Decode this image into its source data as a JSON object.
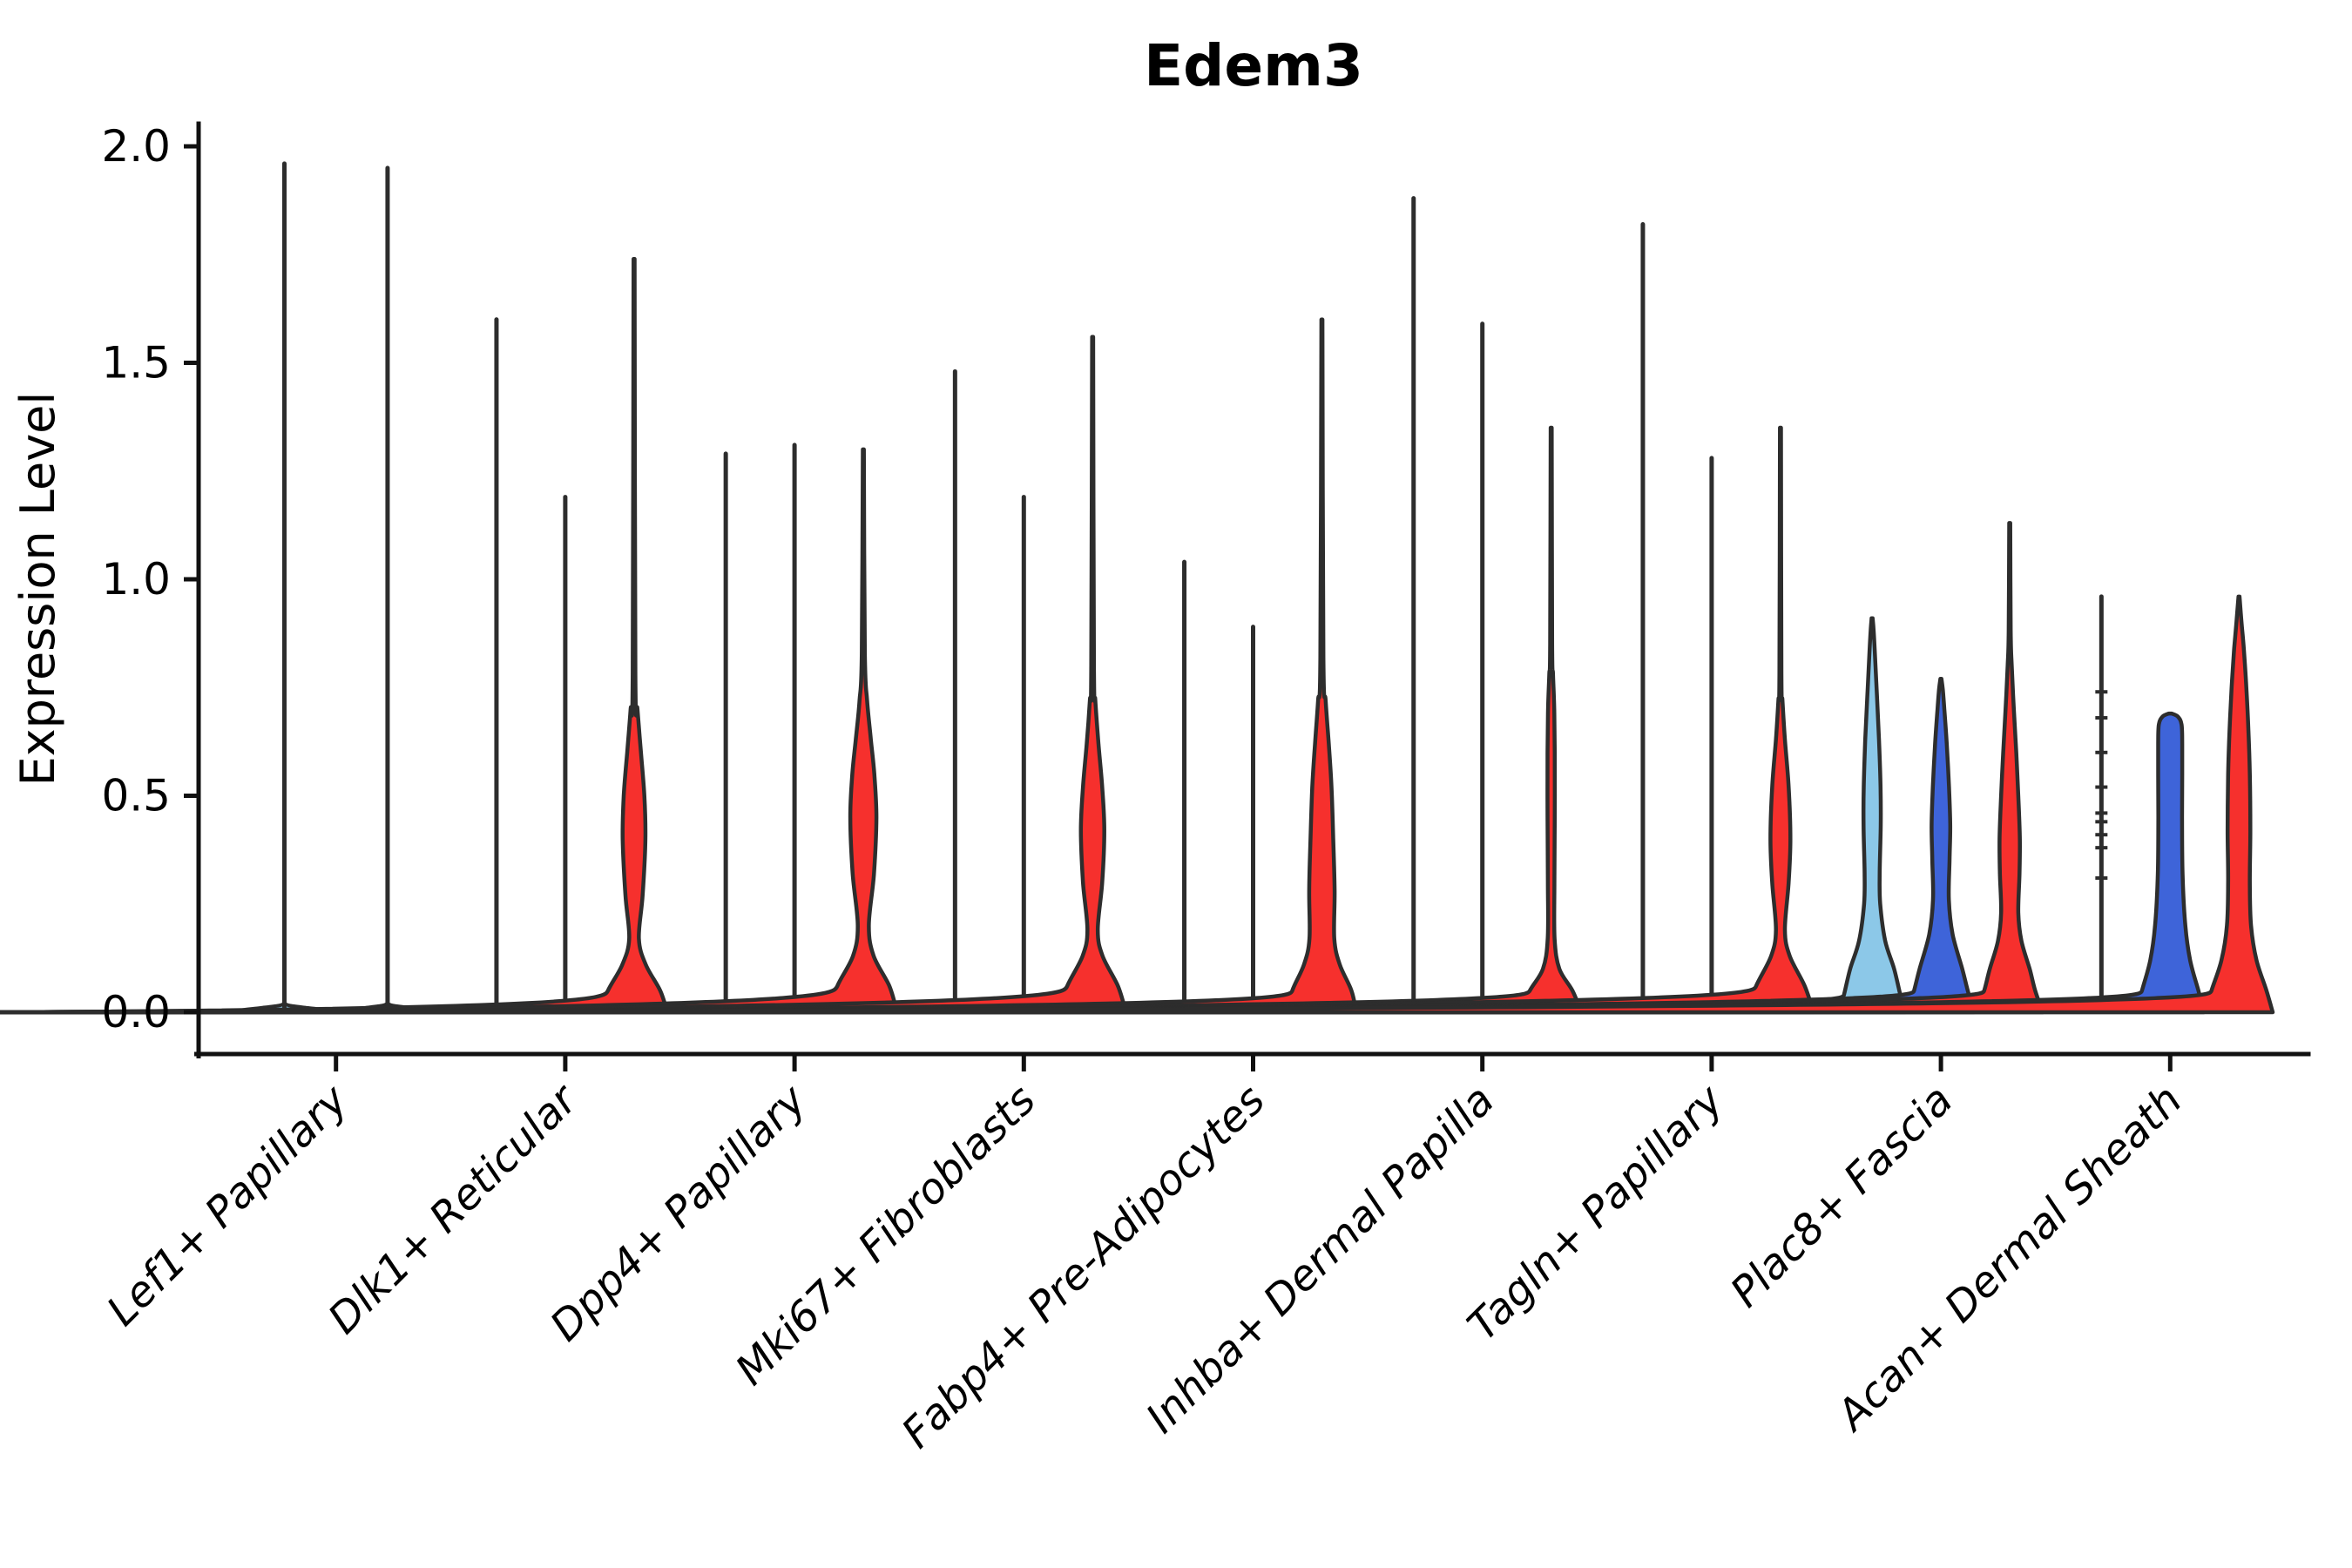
{
  "figure": {
    "background": "#FFFFFF"
  },
  "y_axis": {
    "label": "Expression Level",
    "tick_labels": [
      "0.0",
      "0.5",
      "1.0",
      "1.5",
      "2.0"
    ]
  },
  "chart_data": {
    "type": "violin",
    "title": "Edem3",
    "xlabel": "",
    "ylabel": "Expression Level",
    "ylim": [
      -0.1,
      2.05
    ],
    "yticks": [
      0,
      0.5,
      1,
      1.5,
      2
    ],
    "ytick_labels": [
      "0.0",
      "0.5",
      "1.0",
      "1.5",
      "2.0"
    ],
    "grid": false,
    "legend": "none",
    "outline_color": "#2D2D2D",
    "split_groups": [
      {
        "id": 1,
        "color": "#8CC8E8"
      },
      {
        "id": 2,
        "color": "#3E64D9"
      },
      {
        "id": 3,
        "color": "#F6302D"
      }
    ],
    "categories": [
      {
        "label": "Lef1+ Papillary",
        "violins": [
          {
            "group": 1,
            "max": 1.96,
            "shape": "line"
          },
          {
            "group": 2,
            "max": 1.95,
            "shape": "line"
          }
        ]
      },
      {
        "label": "Dlk1+ Reticular",
        "violins": [
          {
            "group": 1,
            "max": 1.6,
            "shape": "line"
          },
          {
            "group": 2,
            "max": 1.19,
            "shape": "line"
          },
          {
            "group": 3,
            "max": 1.74,
            "shape": "body",
            "profile": [
              [
                0,
                0.97
              ],
              [
                0.05,
                0.76
              ],
              [
                0.11,
                0.34
              ],
              [
                0.17,
                0.14
              ],
              [
                0.27,
                0.25
              ],
              [
                0.4,
                0.33
              ],
              [
                0.5,
                0.3
              ],
              [
                0.6,
                0.2
              ],
              [
                0.7,
                0.1
              ],
              [
                0.78,
                0.04
              ],
              [
                1.74,
                0.015
              ]
            ]
          }
        ]
      },
      {
        "label": "Dpp4+ Papillary",
        "violins": [
          {
            "group": 1,
            "max": 1.29,
            "shape": "line"
          },
          {
            "group": 2,
            "max": 1.31,
            "shape": "line"
          },
          {
            "group": 3,
            "max": 1.3,
            "shape": "body",
            "profile": [
              [
                0,
                0.98
              ],
              [
                0.06,
                0.76
              ],
              [
                0.13,
                0.3
              ],
              [
                0.2,
                0.16
              ],
              [
                0.32,
                0.31
              ],
              [
                0.45,
                0.38
              ],
              [
                0.55,
                0.32
              ],
              [
                0.63,
                0.22
              ],
              [
                0.72,
                0.11
              ],
              [
                0.83,
                0.045
              ],
              [
                1.3,
                0.015
              ]
            ]
          }
        ]
      },
      {
        "label": "Mki67+ Fibroblasts",
        "violins": [
          {
            "group": 1,
            "max": 1.48,
            "shape": "line"
          },
          {
            "group": 2,
            "max": 1.19,
            "shape": "line"
          },
          {
            "group": 3,
            "max": 1.56,
            "shape": "body",
            "profile": [
              [
                0,
                0.97
              ],
              [
                0.06,
                0.74
              ],
              [
                0.13,
                0.29
              ],
              [
                0.19,
                0.15
              ],
              [
                0.3,
                0.28
              ],
              [
                0.42,
                0.34
              ],
              [
                0.52,
                0.28
              ],
              [
                0.62,
                0.17
              ],
              [
                0.72,
                0.08
              ],
              [
                0.8,
                0.04
              ],
              [
                1.56,
                0.015
              ]
            ]
          }
        ]
      },
      {
        "label": "Fabp4+ Pre-Adipocytes",
        "violins": [
          {
            "group": 1,
            "max": 1.04,
            "shape": "line"
          },
          {
            "group": 2,
            "max": 0.89,
            "shape": "line"
          },
          {
            "group": 3,
            "max": 1.6,
            "shape": "body",
            "profile": [
              [
                0,
                1.0
              ],
              [
                0.05,
                0.86
              ],
              [
                0.11,
                0.52
              ],
              [
                0.17,
                0.36
              ],
              [
                0.28,
                0.37
              ],
              [
                0.4,
                0.33
              ],
              [
                0.52,
                0.28
              ],
              [
                0.62,
                0.2
              ],
              [
                0.72,
                0.11
              ],
              [
                0.82,
                0.045
              ],
              [
                1.6,
                0.015
              ]
            ]
          }
        ]
      },
      {
        "label": "Inhba+ Dermal Papilla",
        "violins": [
          {
            "group": 1,
            "max": 1.88,
            "shape": "line"
          },
          {
            "group": 2,
            "max": 1.59,
            "shape": "line"
          },
          {
            "group": 3,
            "max": 1.35,
            "shape": "body",
            "profile": [
              [
                0,
                0.88
              ],
              [
                0.05,
                0.62
              ],
              [
                0.1,
                0.24
              ],
              [
                0.17,
                0.1
              ],
              [
                0.3,
                0.095
              ],
              [
                0.45,
                0.105
              ],
              [
                0.6,
                0.105
              ],
              [
                0.7,
                0.09
              ],
              [
                0.78,
                0.055
              ],
              [
                0.85,
                0.03
              ],
              [
                1.35,
                0.015
              ]
            ]
          }
        ]
      },
      {
        "label": "Tagln+ Papillary",
        "violins": [
          {
            "group": 1,
            "max": 1.82,
            "shape": "line"
          },
          {
            "group": 2,
            "max": 1.28,
            "shape": "line"
          },
          {
            "group": 3,
            "max": 1.35,
            "shape": "body",
            "profile": [
              [
                0,
                0.96
              ],
              [
                0.06,
                0.71
              ],
              [
                0.13,
                0.27
              ],
              [
                0.19,
                0.13
              ],
              [
                0.3,
                0.24
              ],
              [
                0.4,
                0.29
              ],
              [
                0.52,
                0.24
              ],
              [
                0.63,
                0.13
              ],
              [
                0.72,
                0.06
              ],
              [
                0.78,
                0.03
              ],
              [
                1.35,
                0.015
              ]
            ]
          }
        ]
      },
      {
        "label": "Plac8+ Fascia",
        "violins": [
          {
            "group": 1,
            "max": 0.91,
            "shape": "body",
            "profile": [
              [
                0,
                0.96
              ],
              [
                0.04,
                0.82
              ],
              [
                0.1,
                0.64
              ],
              [
                0.165,
                0.38
              ],
              [
                0.25,
                0.235
              ],
              [
                0.32,
                0.22
              ],
              [
                0.43,
                0.25
              ],
              [
                0.52,
                0.245
              ],
              [
                0.63,
                0.2
              ],
              [
                0.73,
                0.14
              ],
              [
                0.82,
                0.085
              ],
              [
                0.88,
                0.045
              ],
              [
                0.91,
                0.015
              ]
            ]
          },
          {
            "group": 2,
            "max": 0.77,
            "shape": "body",
            "profile": [
              [
                0,
                0.96
              ],
              [
                0.05,
                0.78
              ],
              [
                0.1,
                0.62
              ],
              [
                0.18,
                0.34
              ],
              [
                0.26,
                0.23
              ],
              [
                0.35,
                0.25
              ],
              [
                0.43,
                0.27
              ],
              [
                0.52,
                0.235
              ],
              [
                0.62,
                0.17
              ],
              [
                0.7,
                0.1
              ],
              [
                0.745,
                0.055
              ],
              [
                0.77,
                0.015
              ]
            ]
          },
          {
            "group": 3,
            "max": 1.13,
            "shape": "body",
            "profile": [
              [
                0,
                0.96
              ],
              [
                0.05,
                0.74
              ],
              [
                0.1,
                0.58
              ],
              [
                0.165,
                0.34
              ],
              [
                0.23,
                0.25
              ],
              [
                0.32,
                0.285
              ],
              [
                0.4,
                0.295
              ],
              [
                0.5,
                0.25
              ],
              [
                0.6,
                0.19
              ],
              [
                0.7,
                0.12
              ],
              [
                0.8,
                0.06
              ],
              [
                0.88,
                0.03
              ],
              [
                1.13,
                0.015
              ]
            ]
          }
        ]
      },
      {
        "label": "Acan+ Dermal Sheath",
        "violins": [
          {
            "group": 1,
            "max": 0.96,
            "shape": "line",
            "tick_marks": [
              0.74,
              0.68,
              0.6,
              0.52,
              0.46,
              0.44,
              0.41,
              0.38,
              0.31
            ]
          },
          {
            "group": 2,
            "max": 0.69,
            "shape": "body",
            "profile": [
              [
                0,
                0.98
              ],
              [
                0.05,
                0.82
              ],
              [
                0.12,
                0.58
              ],
              [
                0.2,
                0.44
              ],
              [
                0.32,
                0.36
              ],
              [
                0.45,
                0.345
              ],
              [
                0.55,
                0.35
              ],
              [
                0.62,
                0.35
              ],
              [
                0.665,
                0.33
              ],
              [
                0.683,
                0.22
              ],
              [
                0.69,
                0.04
              ]
            ]
          },
          {
            "group": 3,
            "max": 0.96,
            "shape": "body",
            "profile": [
              [
                0,
                0.98
              ],
              [
                0.05,
                0.8
              ],
              [
                0.12,
                0.51
              ],
              [
                0.2,
                0.35
              ],
              [
                0.3,
                0.315
              ],
              [
                0.42,
                0.33
              ],
              [
                0.55,
                0.315
              ],
              [
                0.65,
                0.275
              ],
              [
                0.75,
                0.215
              ],
              [
                0.84,
                0.14
              ],
              [
                0.9,
                0.075
              ],
              [
                0.96,
                0.015
              ]
            ]
          }
        ]
      }
    ]
  }
}
